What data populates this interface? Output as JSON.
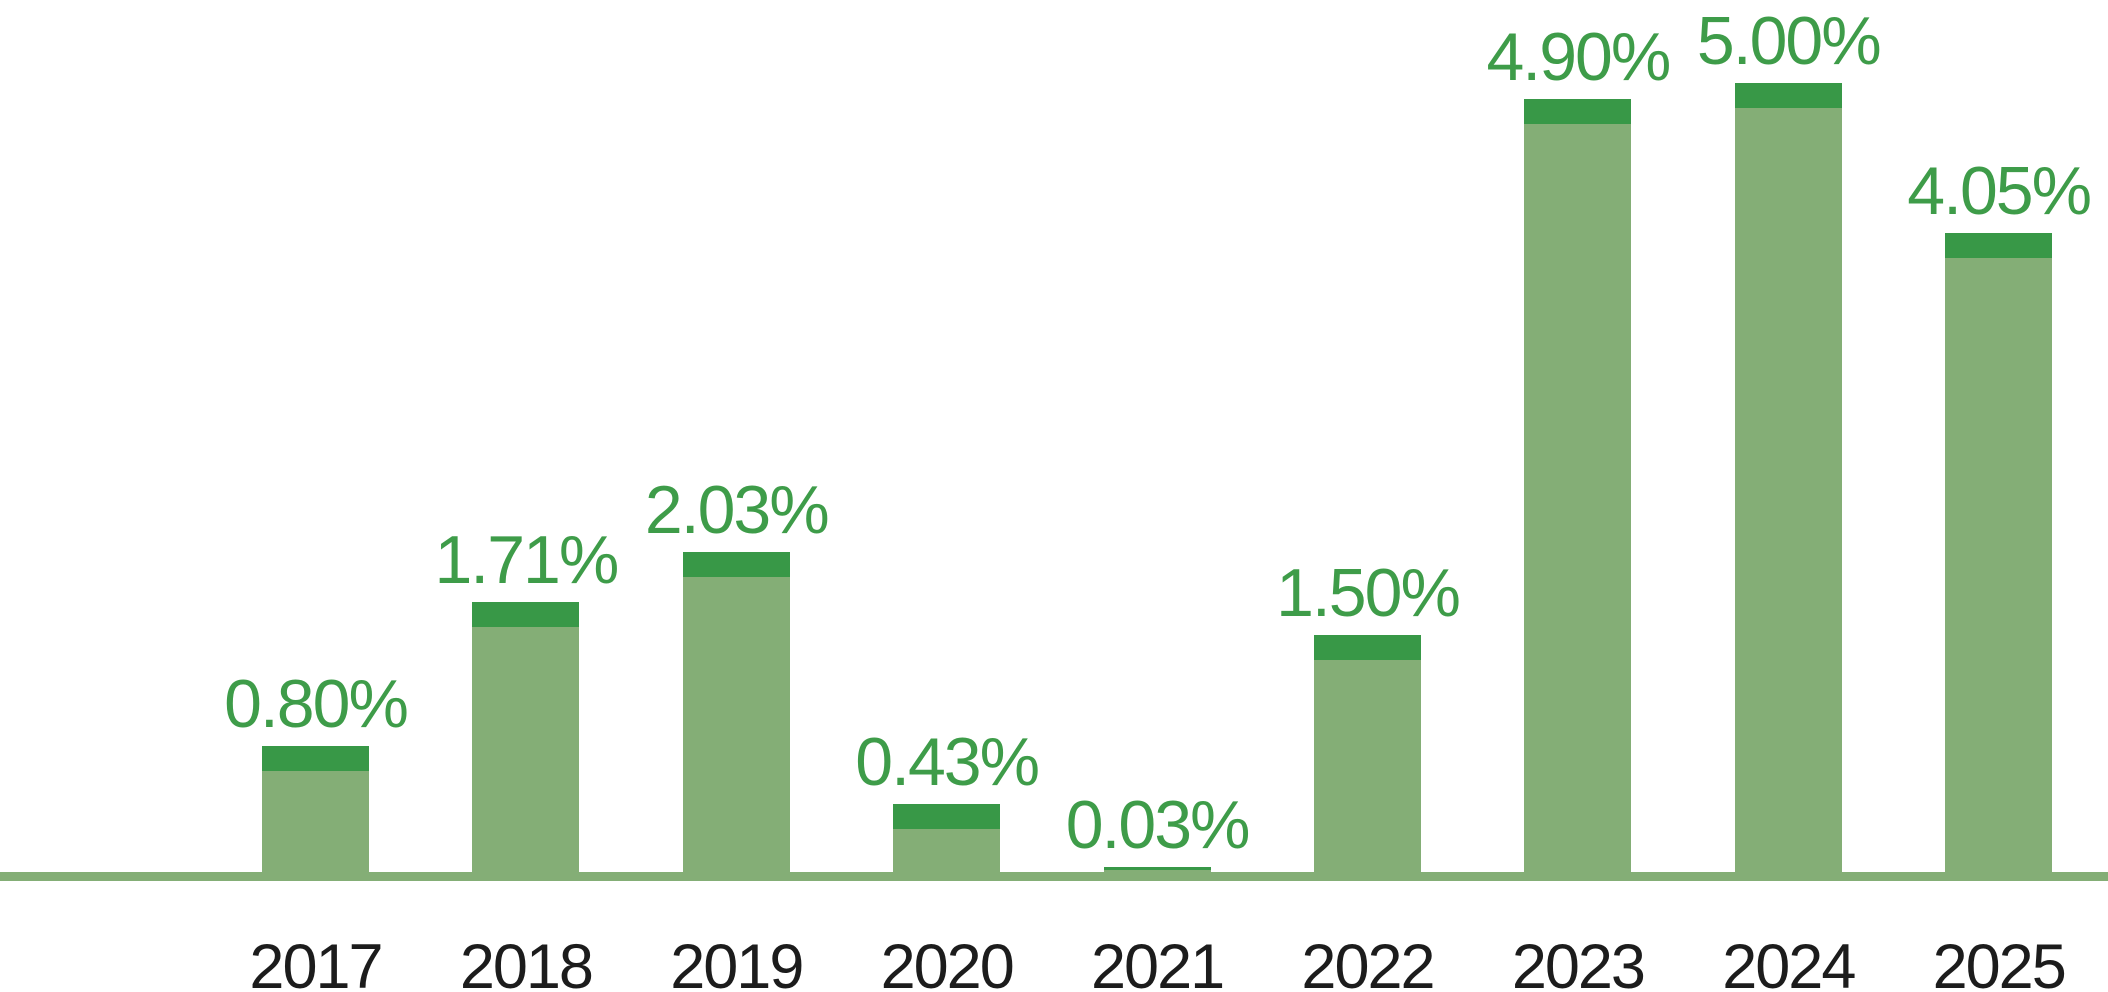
{
  "chart_data": {
    "type": "bar",
    "title": "",
    "xlabel": "",
    "ylabel": "",
    "categories": [
      "2017",
      "2018",
      "2019",
      "2020",
      "2021",
      "2022",
      "2023",
      "2024",
      "2025"
    ],
    "values": [
      0.8,
      1.71,
      2.03,
      0.43,
      0.03,
      1.5,
      4.9,
      5.0,
      4.05
    ],
    "value_labels": [
      "0.80%",
      "1.71%",
      "2.03%",
      "0.43%",
      "0.03%",
      "1.50%",
      "4.90%",
      "5.00%",
      "4.05%"
    ],
    "unit": "%",
    "ylim": [
      0,
      5.6
    ],
    "grid": false,
    "legend": false,
    "y_axis_visible": false,
    "data_labels_position": "above-bars",
    "bar_style": "two-tone: dark green cap segment on top of muted green body",
    "leading_empty_category_slot": true
  },
  "colors": {
    "background": "#FFFFFF",
    "bar_body": "#84AE76",
    "bar_cap": "#389847",
    "data_label_green": "#3E9C49",
    "axis_line_green": "#84AE76",
    "year_label_black": "#1C1C1C"
  }
}
